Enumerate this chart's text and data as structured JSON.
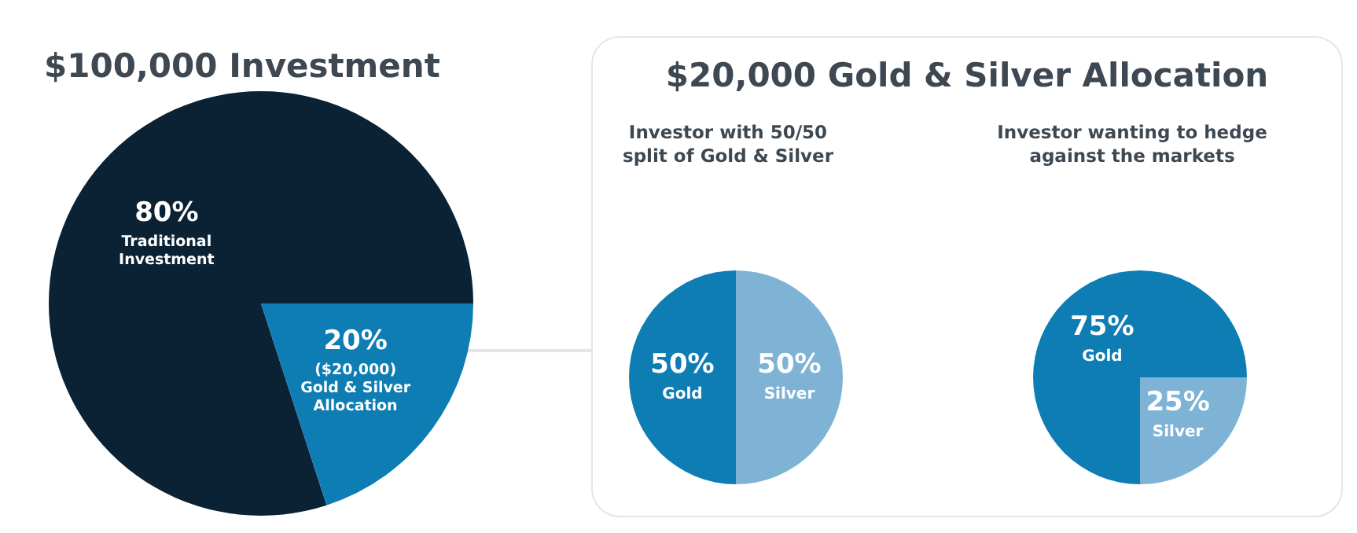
{
  "chart_data": [
    {
      "type": "pie",
      "title": "$100,000 Investment",
      "categories": [
        "Traditional Investment",
        "($20,000) Gold & Silver Allocation"
      ],
      "values": [
        80,
        20
      ],
      "value_labels": [
        "80%",
        "20%"
      ],
      "colors": [
        "#0b2235",
        "#0e7db4"
      ]
    },
    {
      "type": "other",
      "title": "$20,000 Gold & Silver Allocation"
    },
    {
      "type": "pie",
      "title": "Investor with 50/50 split of Gold & Silver",
      "categories": [
        "Gold",
        "Silver"
      ],
      "values": [
        50,
        50
      ],
      "value_labels": [
        "50%",
        "50%"
      ],
      "colors": [
        "#0e7db4",
        "#7fb3d5"
      ]
    },
    {
      "type": "pie",
      "title": "Investor wanting to hedge against the markets",
      "categories": [
        "Gold",
        "Silver"
      ],
      "values": [
        75,
        25
      ],
      "value_labels": [
        "75%",
        "25%"
      ],
      "colors": [
        "#0e7db4",
        "#7fb3d5"
      ]
    }
  ]
}
